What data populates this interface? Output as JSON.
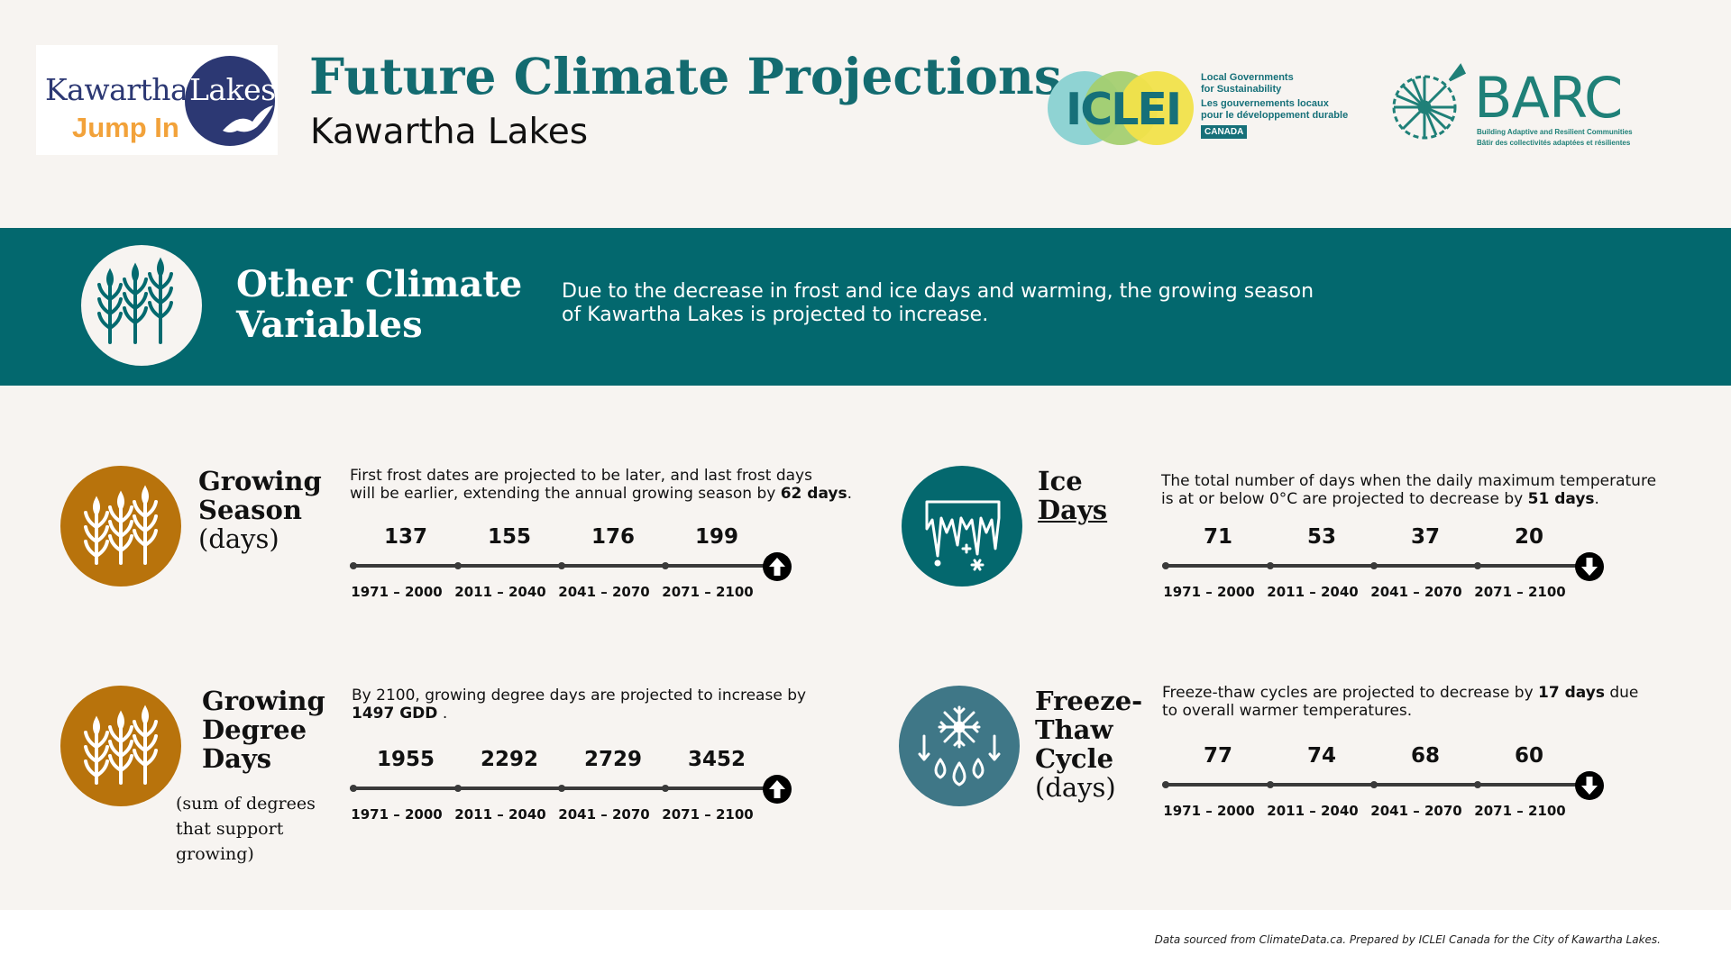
{
  "header": {
    "title": "Future Climate Projections",
    "subtitle": "Kawartha Lakes",
    "logo_kl": {
      "word1": "Kawartha",
      "word2": "Lakes",
      "tagline": "Jump In"
    },
    "logo_iclei": {
      "word": "ICLEI",
      "line1": "Local Governments",
      "line2": "for Sustainability",
      "line3": "Les gouvernements locaux",
      "line4": "pour le développement durable",
      "badge": "CANADA"
    },
    "logo_barc": {
      "word": "BARC",
      "line1": "Building Adaptive and Resilient Communities",
      "line2": "Bâtir des collectivités adaptées et résilientes"
    }
  },
  "banner": {
    "title_line1": "Other Climate",
    "title_line2": "Variables",
    "desc_line1": "Due to the decrease in frost and ice days and warming, the growing season",
    "desc_line2": "of Kawartha Lakes is projected to increase."
  },
  "periods": [
    "1971 – 2000",
    "2011 – 2040",
    "2041 – 2070",
    "2071 – 2100"
  ],
  "cards": {
    "growing_season": {
      "title1": "Growing",
      "title2": "Season",
      "unit": "(days)",
      "desc_line1": "First frost dates are projected to be later, and last frost days",
      "desc_line2_pre": "will be earlier, extending the annual growing season by ",
      "desc_line2_bold": "62 days",
      "desc_line2_post": ".",
      "values": [
        "137",
        "155",
        "176",
        "199"
      ],
      "trend": "up",
      "icon": "wheat-icon",
      "color": "#b8730c"
    },
    "ice_days": {
      "title1": "Ice",
      "title2": "Days",
      "desc_line1": "The total number of days when the daily maximum temperature",
      "desc_line2_pre": "is at or below 0°C are projected to decrease by ",
      "desc_line2_bold": "51 days",
      "desc_line2_post": ".",
      "values": [
        "71",
        "53",
        "37",
        "20"
      ],
      "trend": "down",
      "icon": "icicles-icon",
      "color": "#04686e"
    },
    "growing_degree_days": {
      "title1": "Growing",
      "title2": "Degree",
      "title3": "Days",
      "note1": "(sum of degrees",
      "note2": "that support",
      "note3": "growing)",
      "desc_line1": "By 2100, growing degree days are projected to increase by",
      "desc_line2_bold": "1497 GDD",
      "desc_line2_post": " .",
      "values": [
        "1955",
        "2292",
        "2729",
        "3452"
      ],
      "trend": "up",
      "icon": "wheat-icon",
      "color": "#b8730c"
    },
    "freeze_thaw": {
      "title1": "Freeze-",
      "title2": "Thaw",
      "title3": "Cycle",
      "unit": "(days)",
      "desc_line1_pre": "Freeze-thaw cycles are projected to decrease by ",
      "desc_line1_bold": "17 days",
      "desc_line1_post": " due",
      "desc_line2": "to overall warmer temperatures.",
      "values": [
        "77",
        "74",
        "68",
        "60"
      ],
      "trend": "down",
      "icon": "snowflake-drops-icon",
      "color": "#3f7787"
    }
  },
  "footer": {
    "source": "Data sourced from ClimateData.ca. Prepared by ICLEI Canada for the City of Kawartha Lakes."
  }
}
